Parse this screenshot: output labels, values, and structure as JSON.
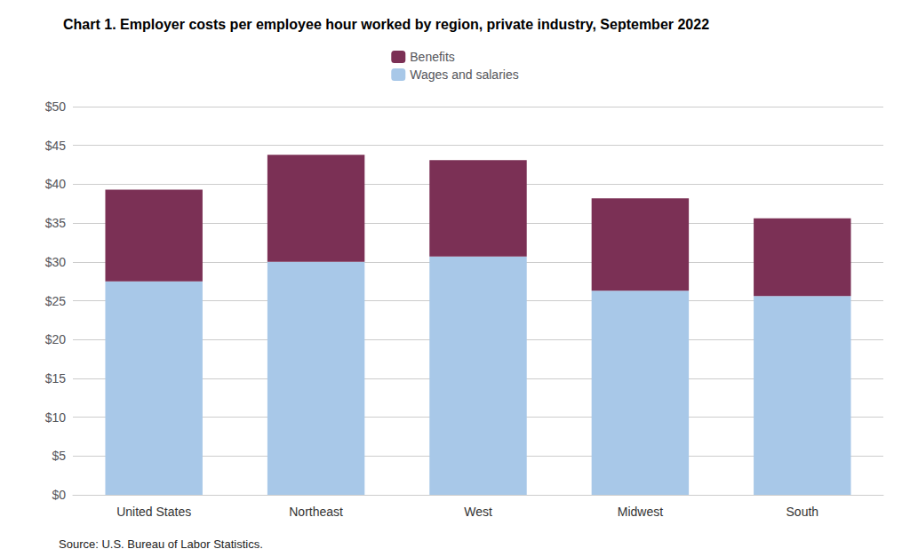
{
  "chart_data": {
    "type": "bar",
    "stacked": true,
    "title": "Chart 1. Employer costs per employee hour worked by region, private industry, September 2022",
    "categories": [
      "United States",
      "Northeast",
      "West",
      "Midwest",
      "South"
    ],
    "series": [
      {
        "name": "Wages and salaries",
        "color": "#a8c8e8",
        "values": [
          27.5,
          30.0,
          30.7,
          26.3,
          25.6
        ]
      },
      {
        "name": "Benefits",
        "color": "#7b3055",
        "values": [
          11.8,
          13.8,
          12.4,
          11.9,
          10.0
        ]
      }
    ],
    "ylim": [
      0,
      50
    ],
    "yticks": [
      {
        "value": 0,
        "label": "$0"
      },
      {
        "value": 5,
        "label": "$5"
      },
      {
        "value": 10,
        "label": "$10"
      },
      {
        "value": 15,
        "label": "$15"
      },
      {
        "value": 20,
        "label": "$20"
      },
      {
        "value": 25,
        "label": "$25"
      },
      {
        "value": 30,
        "label": "$30"
      },
      {
        "value": 35,
        "label": "$35"
      },
      {
        "value": 40,
        "label": "$40"
      },
      {
        "value": 45,
        "label": "$45"
      },
      {
        "value": 50,
        "label": "$50"
      }
    ],
    "grid": true,
    "legend": "top",
    "annotations": [
      "Source: U.S. Bureau of Labor Statistics."
    ]
  }
}
